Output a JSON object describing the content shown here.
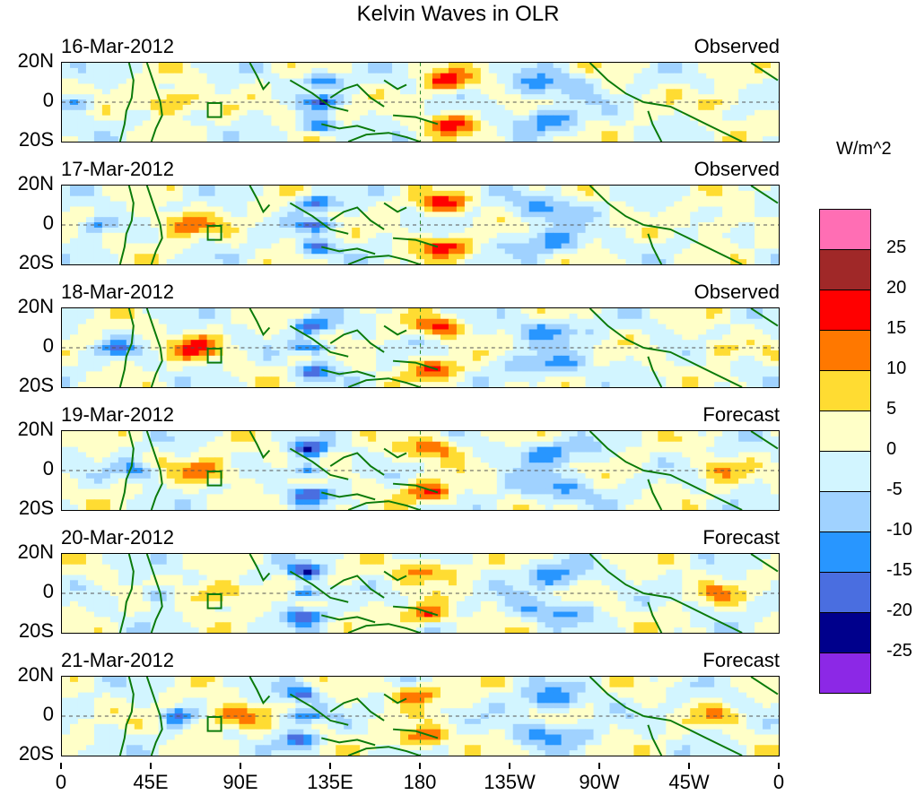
{
  "title": "Kelvin Waves in OLR",
  "units": "W/m^2",
  "panels": [
    {
      "date": "16-Mar-2012",
      "status": "Observed"
    },
    {
      "date": "17-Mar-2012",
      "status": "Observed"
    },
    {
      "date": "18-Mar-2012",
      "status": "Observed"
    },
    {
      "date": "19-Mar-2012",
      "status": "Forecast"
    },
    {
      "date": "20-Mar-2012",
      "status": "Forecast"
    },
    {
      "date": "21-Mar-2012",
      "status": "Forecast"
    }
  ],
  "lat_labels": [
    "20N",
    "0",
    "20S"
  ],
  "lon_labels": [
    "0",
    "45E",
    "90E",
    "135E",
    "180",
    "135W",
    "90W",
    "45W",
    "0"
  ],
  "colorbar": {
    "colors": [
      "#ff6eb4",
      "#a02828",
      "#ff0000",
      "#ff7800",
      "#ffdc32",
      "#ffffc8",
      "#d2f5ff",
      "#a0d2ff",
      "#2896ff",
      "#4a6ee0",
      "#00008c",
      "#8c28e6"
    ],
    "labels": [
      "25",
      "20",
      "15",
      "10",
      "5",
      "0",
      "-5",
      "-10",
      "-15",
      "-20",
      "-25"
    ]
  }
}
